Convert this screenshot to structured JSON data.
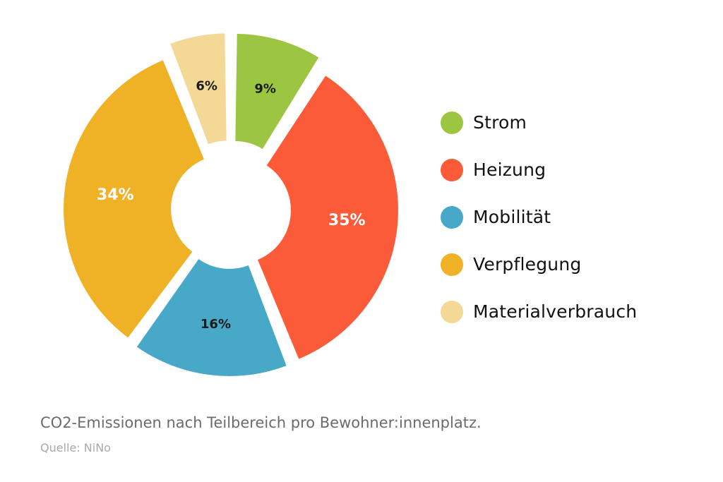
{
  "chart_data": {
    "type": "pie",
    "series": [
      {
        "values": [
          9,
          35,
          16,
          34,
          6
        ],
        "labels": [
          "9%",
          "35%",
          "16%",
          "34%",
          "6%"
        ]
      }
    ],
    "categories": [
      "Strom",
      "Heizung",
      "Mobilität",
      "Verpflegung",
      "Materialverbrauch"
    ],
    "colors": [
      "#9cc641",
      "#fb5b39",
      "#48a8c7",
      "#efb125",
      "#f4d996"
    ],
    "label_colors": [
      "#1a1a1a",
      "#ffffff",
      "#1a1a1a",
      "#ffffff",
      "#1a1a1a"
    ],
    "legend_position": "right",
    "style": "donut, exploded slices"
  },
  "caption": "CO2-Emissionen nach Teilbereich pro Bewohner:innenplatz.",
  "source": "Quelle: NiNo"
}
